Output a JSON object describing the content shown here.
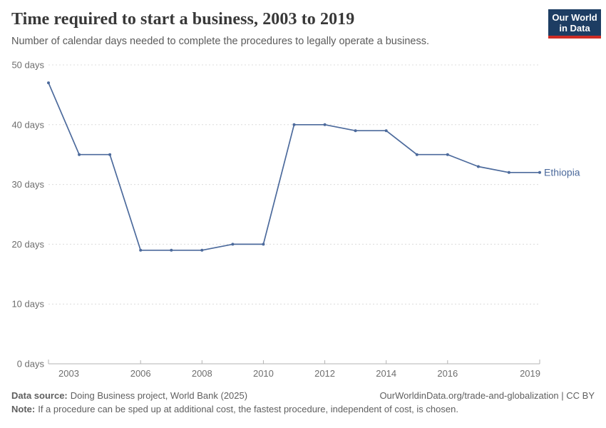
{
  "header": {
    "title": "Time required to start a business, 2003 to 2019",
    "subtitle": "Number of calendar days needed to complete the procedures to legally operate a business."
  },
  "logo": {
    "line1": "Our World",
    "line2": "in Data"
  },
  "chart_data": {
    "type": "line",
    "title": "Time required to start a business, 2003 to 2019",
    "x": [
      2003,
      2004,
      2005,
      2006,
      2007,
      2008,
      2009,
      2010,
      2011,
      2012,
      2013,
      2014,
      2015,
      2016,
      2017,
      2018,
      2019
    ],
    "series": [
      {
        "name": "Ethiopia",
        "values": [
          47,
          35,
          35,
          19,
          19,
          19,
          20,
          20,
          40,
          40,
          39,
          39,
          35,
          35,
          33,
          32,
          32
        ]
      }
    ],
    "xticks": [
      2003,
      2006,
      2008,
      2010,
      2012,
      2014,
      2016,
      2019
    ],
    "yticks": [
      0,
      10,
      20,
      30,
      40,
      50
    ],
    "ylim": [
      0,
      50
    ],
    "y_suffix": "days",
    "grid": "horizontal-dashed",
    "legend_position": "end-of-line",
    "line_color": "#4C6A9C"
  },
  "colors": {
    "line": "#4C6A9C",
    "gridline": "#dcdcdc",
    "axis": "#b3b3b3",
    "logo_bg": "#1d3d63",
    "logo_stripe": "#cf2d25"
  },
  "footer": {
    "datasource_label": "Data source:",
    "datasource_text": "Doing Business project, World Bank (2025)",
    "credit": "OurWorldinData.org/trade-and-globalization | CC BY",
    "note_label": "Note:",
    "note_text": "If a procedure can be sped up at additional cost, the fastest procedure, independent of cost, is chosen."
  }
}
